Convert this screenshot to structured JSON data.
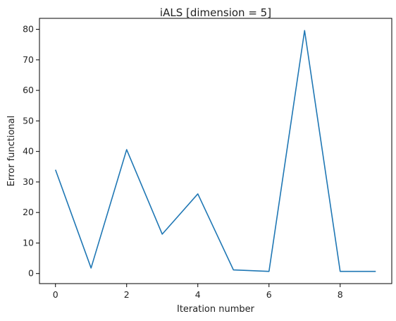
{
  "chart_data": {
    "type": "line",
    "title": "iALS [dimension = 5]",
    "xlabel": "Iteration number",
    "ylabel": "Error functional",
    "x": [
      0,
      1,
      2,
      3,
      4,
      5,
      6,
      7,
      8,
      9
    ],
    "series": [
      {
        "values": [
          34.0,
          1.8,
          40.6,
          12.9,
          26.1,
          1.2,
          0.7,
          79.6,
          0.7,
          0.7
        ],
        "color": "#1f77b4"
      }
    ],
    "xlim": [
      -0.45,
      9.45
    ],
    "ylim": [
      -3.3,
      83.6
    ],
    "xticks": [
      "0",
      "2",
      "4",
      "6",
      "8"
    ],
    "yticks": [
      "0",
      "10",
      "20",
      "30",
      "40",
      "50",
      "60",
      "70",
      "80"
    ],
    "grid": false,
    "legend": "none"
  }
}
